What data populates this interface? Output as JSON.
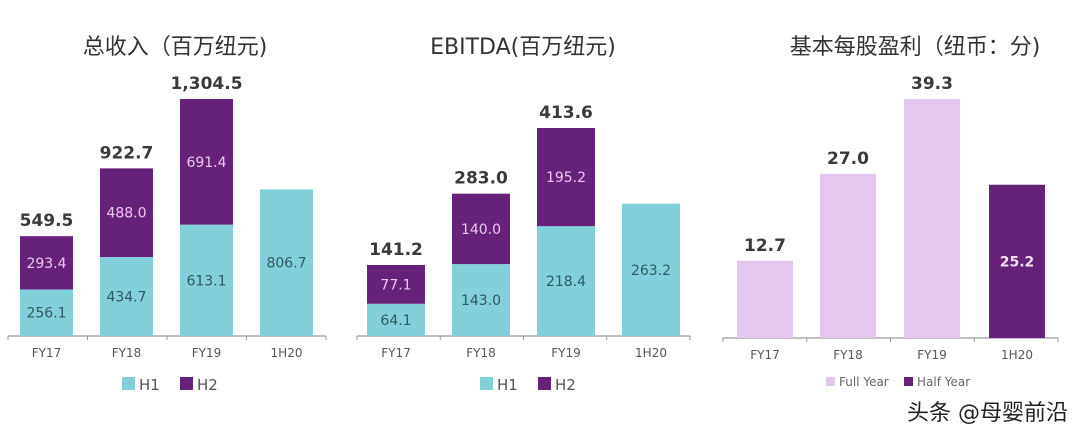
{
  "colors": {
    "h1": "#82d0d9",
    "h2": "#68217a",
    "full_year": "#e3c7ec",
    "half_year": "#68217a"
  },
  "chart_data": [
    {
      "type": "bar",
      "stacked": true,
      "title": "总收入（百万纽元)",
      "categories": [
        "FY17",
        "FY18",
        "FY19",
        "1H20"
      ],
      "series": [
        {
          "name": "H1",
          "values": [
            256.1,
            434.7,
            613.1,
            806.7
          ]
        },
        {
          "name": "H2",
          "values": [
            293.4,
            488.0,
            691.4,
            null
          ]
        }
      ],
      "totals": [
        "549.5",
        "922.7",
        "1,304.5",
        null
      ],
      "legend": "bottom"
    },
    {
      "type": "bar",
      "stacked": true,
      "title": "EBITDA(百万纽元)",
      "categories": [
        "FY17",
        "FY18",
        "FY19",
        "1H20"
      ],
      "series": [
        {
          "name": "H1",
          "values": [
            64.1,
            143.0,
            218.4,
            263.2
          ]
        },
        {
          "name": "H2",
          "values": [
            77.1,
            140.0,
            195.2,
            null
          ]
        }
      ],
      "totals": [
        "141.2",
        "283.0",
        "413.6",
        null
      ],
      "legend": "bottom"
    },
    {
      "type": "bar",
      "stacked": false,
      "title": "基本每股盈利（纽币：分)",
      "categories": [
        "FY17",
        "FY18",
        "FY19",
        "1H20"
      ],
      "series": [
        {
          "name": "Full Year",
          "values": [
            12.7,
            27.0,
            39.3,
            null
          ]
        },
        {
          "name": "Half Year",
          "values": [
            null,
            null,
            null,
            25.2
          ]
        }
      ],
      "legend": "bottom"
    }
  ],
  "watermark": "头条 @母婴前沿"
}
